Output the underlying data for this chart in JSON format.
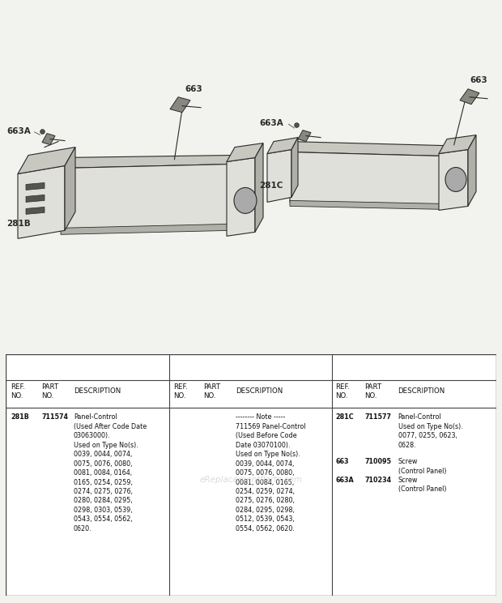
{
  "bg_color": "#f2f2ee",
  "table_bg": "#ffffff",
  "watermark": "eReplacementParts.com",
  "header_row": [
    "REF.\nNO.",
    "PART\nNO.",
    "DESCRIPTION"
  ],
  "col_divs": [
    0.333,
    0.666
  ],
  "left_data": {
    "ref": "281B",
    "part": "711574",
    "desc": "Panel-Control\n(Used After Code Date\n03063000).\nUsed on Type No(s).\n0039, 0044, 0074,\n0075, 0076, 0080,\n0081, 0084, 0164,\n0165, 0254, 0259,\n0274, 0275, 0276,\n0280, 0284, 0295,\n0298, 0303, 0539,\n0543, 0554, 0562,\n0620."
  },
  "mid_data": {
    "ref": "",
    "part": "",
    "desc": "-------- Note -----\n711569 Panel-Control\n(Used Before Code\nDate 03070100).\nUsed on Type No(s).\n0039, 0044, 0074,\n0075, 0076, 0080,\n0081, 0084, 0165,\n0254, 0259, 0274,\n0275, 0276, 0280,\n0284, 0295, 0298,\n0512, 0539, 0543,\n0554, 0562, 0620."
  },
  "right_data": [
    {
      "ref": "281C",
      "part": "711577",
      "desc": "Panel-Control\nUsed on Type No(s).\n0077, 0255, 0623,\n0628."
    },
    {
      "ref": "663",
      "part": "710095",
      "desc": "Screw\n(Control Panel)"
    },
    {
      "ref": "663A",
      "part": "710234",
      "desc": "Screw\n(Control Panel)"
    }
  ]
}
